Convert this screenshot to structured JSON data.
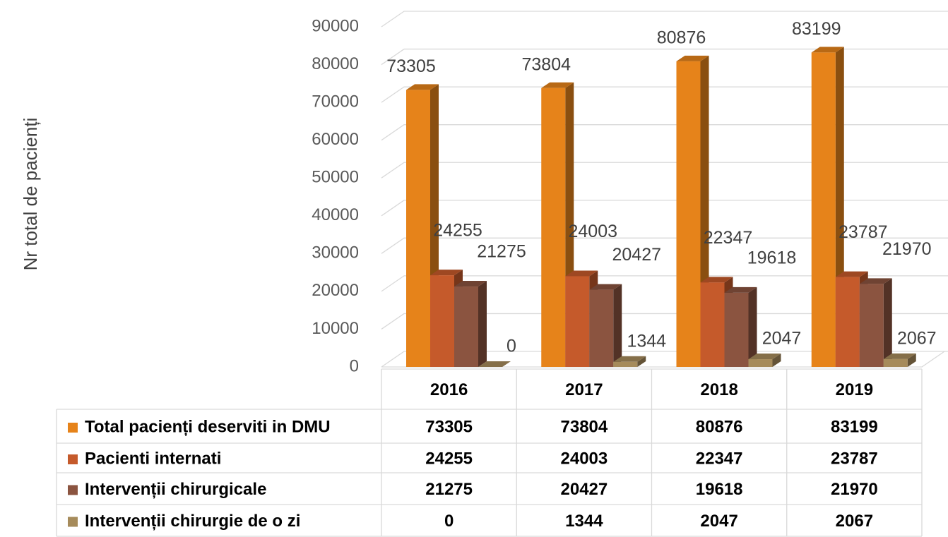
{
  "chart_data": {
    "type": "bar3d",
    "y_label": "Nr total de pacienți",
    "categories": [
      "2016",
      "2017",
      "2018",
      "2019"
    ],
    "series": [
      {
        "name": "Total pacienți deserviti in DMU",
        "color": "#e6831a",
        "values": [
          73305,
          73804,
          80876,
          83199
        ]
      },
      {
        "name": "Pacienti internati",
        "color": "#c55a2b",
        "values": [
          24255,
          24003,
          22347,
          23787
        ]
      },
      {
        "name": "Intervenții chirurgicale",
        "color": "#8b5440",
        "values": [
          21275,
          20427,
          19618,
          21970
        ]
      },
      {
        "name": "Intervenții chirurgie de o zi",
        "color": "#a68b5b",
        "values": [
          0,
          1344,
          2047,
          2067
        ]
      }
    ],
    "ylim": [
      0,
      90000
    ],
    "yticks": [
      0,
      10000,
      20000,
      30000,
      40000,
      50000,
      60000,
      70000,
      80000,
      90000
    ],
    "grid": true,
    "data_table": true
  }
}
